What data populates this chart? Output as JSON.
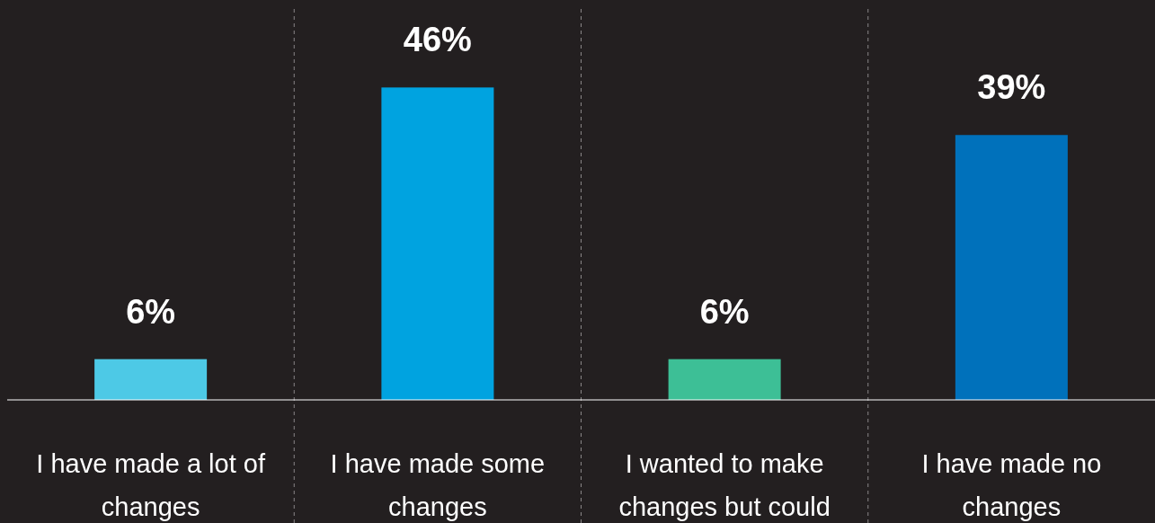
{
  "chart_data": {
    "type": "bar",
    "categories": [
      "I have made a lot of changes",
      "I have made some changes",
      "I wanted to make changes but could",
      "I have made no changes"
    ],
    "values": [
      6,
      46,
      6,
      39
    ],
    "colors": [
      "#4dc9e6",
      "#00a3e0",
      "#3dbf96",
      "#0071bb"
    ],
    "value_labels": [
      "6%",
      "46%",
      "6%",
      "39%"
    ]
  }
}
